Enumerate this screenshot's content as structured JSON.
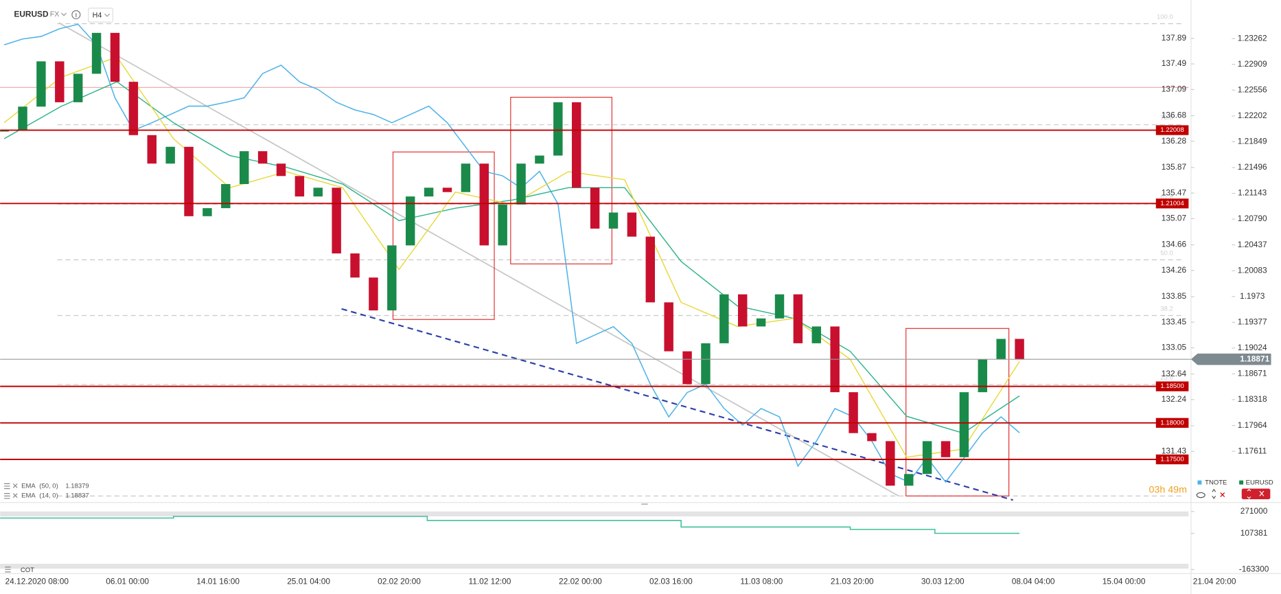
{
  "header": {
    "symbol": "EURUSD",
    "market": "FX",
    "interval": "H4"
  },
  "chart_data": {
    "type": "candlestick",
    "x_labels": [
      "24.12.2020 08:00",
      "06.01 00:00",
      "14.01 16:00",
      "25.01 04:00",
      "02.02 20:00",
      "11.02 12:00",
      "22.02 00:00",
      "02.03 16:00",
      "11.03 08:00",
      "21.03 20:00",
      "30.03 12:00",
      "08.04 04:00",
      "15.04 00:00",
      "21.04 20:00"
    ],
    "series": [
      {
        "name": "EURUSD",
        "color": "#1a8a4a",
        "down_color": "#c8102e",
        "axis": "y",
        "values": [
          1.22,
          1.2233,
          1.2295,
          1.2239,
          1.2278,
          1.2334,
          1.2267,
          1.2194,
          1.2155,
          1.2178,
          1.2083,
          1.2094,
          1.2127,
          1.2172,
          1.2155,
          1.2138,
          1.211,
          1.2122,
          1.2032,
          1.1999,
          1.1954,
          1.2043,
          1.211,
          1.2122,
          1.2116,
          1.2155,
          1.2043,
          1.2099,
          1.2155,
          1.2166,
          1.2239,
          1.2122,
          1.2066,
          1.2088,
          1.2055,
          1.1965,
          1.1898,
          1.1853,
          1.1909,
          1.1976,
          1.1932,
          1.1943,
          1.1976,
          1.1909,
          1.1932,
          1.1842,
          1.1786,
          1.1775,
          1.1714,
          1.173,
          1.1775,
          1.1753,
          1.1842,
          1.1887,
          1.1915,
          1.1887
        ]
      },
      {
        "name": "TNOTE",
        "color": "#4fb3e8",
        "axis": "y2",
        "values": [
          137.79,
          137.88,
          137.92,
          138.04,
          138.11,
          137.79,
          136.96,
          136.45,
          136.57,
          136.7,
          136.83,
          136.83,
          136.89,
          136.96,
          137.34,
          137.47,
          137.21,
          137.09,
          136.89,
          136.77,
          136.7,
          136.57,
          136.7,
          136.83,
          136.57,
          136.19,
          135.81,
          135.74,
          135.55,
          135.81,
          135.3,
          133.12,
          133.25,
          133.38,
          133.12,
          132.48,
          131.97,
          132.35,
          132.48,
          132.1,
          131.84,
          132.1,
          131.97,
          131.2,
          131.59,
          132.1,
          131.97,
          131.59,
          131.08,
          130.95,
          131.33,
          130.95,
          131.33,
          131.72,
          131.97,
          131.72
        ]
      }
    ],
    "indicators": [
      {
        "name": "EMA",
        "params": "(50, 0)",
        "last": 1.18379,
        "color": "#2bb38a",
        "values": [
          1.2189,
          1.2233,
          1.2267,
          1.2211,
          1.2166,
          1.215,
          1.2127,
          1.2077,
          1.2094,
          1.2105,
          1.2122,
          1.2122,
          1.2021,
          1.196,
          1.1943,
          1.1898,
          1.1809,
          1.1786,
          1.1837
        ]
      },
      {
        "name": "EMA",
        "params": "(14, 0)",
        "last": 1.18837,
        "color": "#e8d838",
        "values": [
          1.2211,
          1.2273,
          1.2301,
          1.2189,
          1.2122,
          1.2144,
          1.2122,
          1.201,
          1.2116,
          1.2099,
          1.2144,
          1.2133,
          1.1965,
          1.1932,
          1.1943,
          1.1887,
          1.1753,
          1.1764,
          1.1884
        ]
      }
    ],
    "ylim": [
      1.1691,
      1.2379
    ],
    "yticks": [
      1.23262,
      1.22909,
      1.22556,
      1.22202,
      1.21849,
      1.21496,
      1.21143,
      {
        "value": 1.2079,
        "label": "1.20790"
      },
      1.20437,
      1.20083,
      1.1973,
      1.19377,
      1.19024,
      1.18671,
      1.18318,
      1.17964,
      1.17611
    ],
    "y2lim": [
      130.63,
      138.49
    ],
    "y2ticks": [
      137.89,
      137.49,
      137.09,
      136.68,
      136.28,
      135.87,
      135.47,
      135.07,
      134.66,
      134.26,
      133.85,
      133.45,
      133.05,
      132.64,
      132.24,
      131.83,
      131.43
    ],
    "levels": [
      1.22008,
      1.21004,
      {
        "value": 1.185,
        "label": "1.18500"
      },
      {
        "value": 1.18,
        "label": "1.18000"
      },
      {
        "value": 1.175,
        "label": "1.17500"
      }
    ],
    "level_color": "#c00000",
    "last_price": 1.18871,
    "fib_levels": [
      {
        "value": 100,
        "label": "100.0"
      },
      {
        "value": 78.6,
        "label": "78.6"
      },
      {
        "value": 61.8,
        "label": "61.8"
      },
      {
        "value": 50,
        "label": "50.0"
      },
      {
        "value": 38.2,
        "label": "38.2"
      },
      {
        "value": 23.6,
        "label": "23.6"
      }
    ],
    "countdown": "03h 49m"
  },
  "cot_panel": {
    "type": "line",
    "name": "COT",
    "color": "#3fbf9a",
    "values": [
      222000,
      222000,
      234300,
      234300,
      234300,
      203700,
      203700,
      203700,
      154800,
      154800,
      136400,
      107381,
      107381
    ],
    "ylim": [
      -181650,
      307700
    ],
    "yticks": [
      271000,
      107381,
      -163300
    ]
  }
}
